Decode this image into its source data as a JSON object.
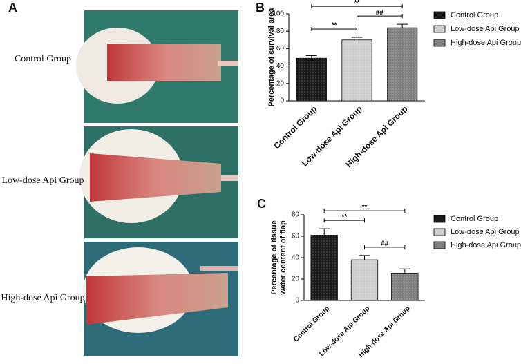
{
  "panel_a": {
    "label": "A",
    "rows": [
      "Control Group",
      "Low-dose Api Group",
      "High-dose Api Group"
    ]
  },
  "chart_data": [
    {
      "type": "bar",
      "panel_label": "B",
      "y_label": [
        "Percentage of survival area"
      ],
      "categories": [
        "Control Group",
        "Low-dose Api Group",
        "High-dose Api Group"
      ],
      "values": [
        49,
        70,
        84
      ],
      "errors": [
        3,
        3,
        4
      ],
      "colors": [
        "#1a1a1a",
        "#cfcfcf",
        "#808080"
      ],
      "ylim": [
        0,
        100
      ],
      "yticks": [
        0,
        20,
        40,
        60,
        80,
        100
      ],
      "significance": [
        {
          "groups": [
            0,
            1
          ],
          "label": "**"
        },
        {
          "groups": [
            0,
            2
          ],
          "label": "**"
        },
        {
          "groups": [
            1,
            2
          ],
          "label": "##"
        }
      ],
      "legend": "right"
    },
    {
      "type": "bar",
      "panel_label": "C",
      "y_label": [
        "Percentage of tissue",
        "water content of flap"
      ],
      "categories": [
        "Control Group",
        "Low-dose Api Group",
        "High-dose Api Group"
      ],
      "values": [
        61,
        38,
        25.5
      ],
      "errors": [
        6,
        4,
        4
      ],
      "colors": [
        "#1a1a1a",
        "#cfcfcf",
        "#808080"
      ],
      "ylim": [
        0,
        80
      ],
      "yticks": [
        0,
        20,
        40,
        60,
        80
      ],
      "significance": [
        {
          "groups": [
            1,
            2
          ],
          "label": "##"
        },
        {
          "groups": [
            0,
            1
          ],
          "label": "**"
        },
        {
          "groups": [
            0,
            2
          ],
          "label": "**"
        }
      ],
      "legend": "right"
    }
  ]
}
